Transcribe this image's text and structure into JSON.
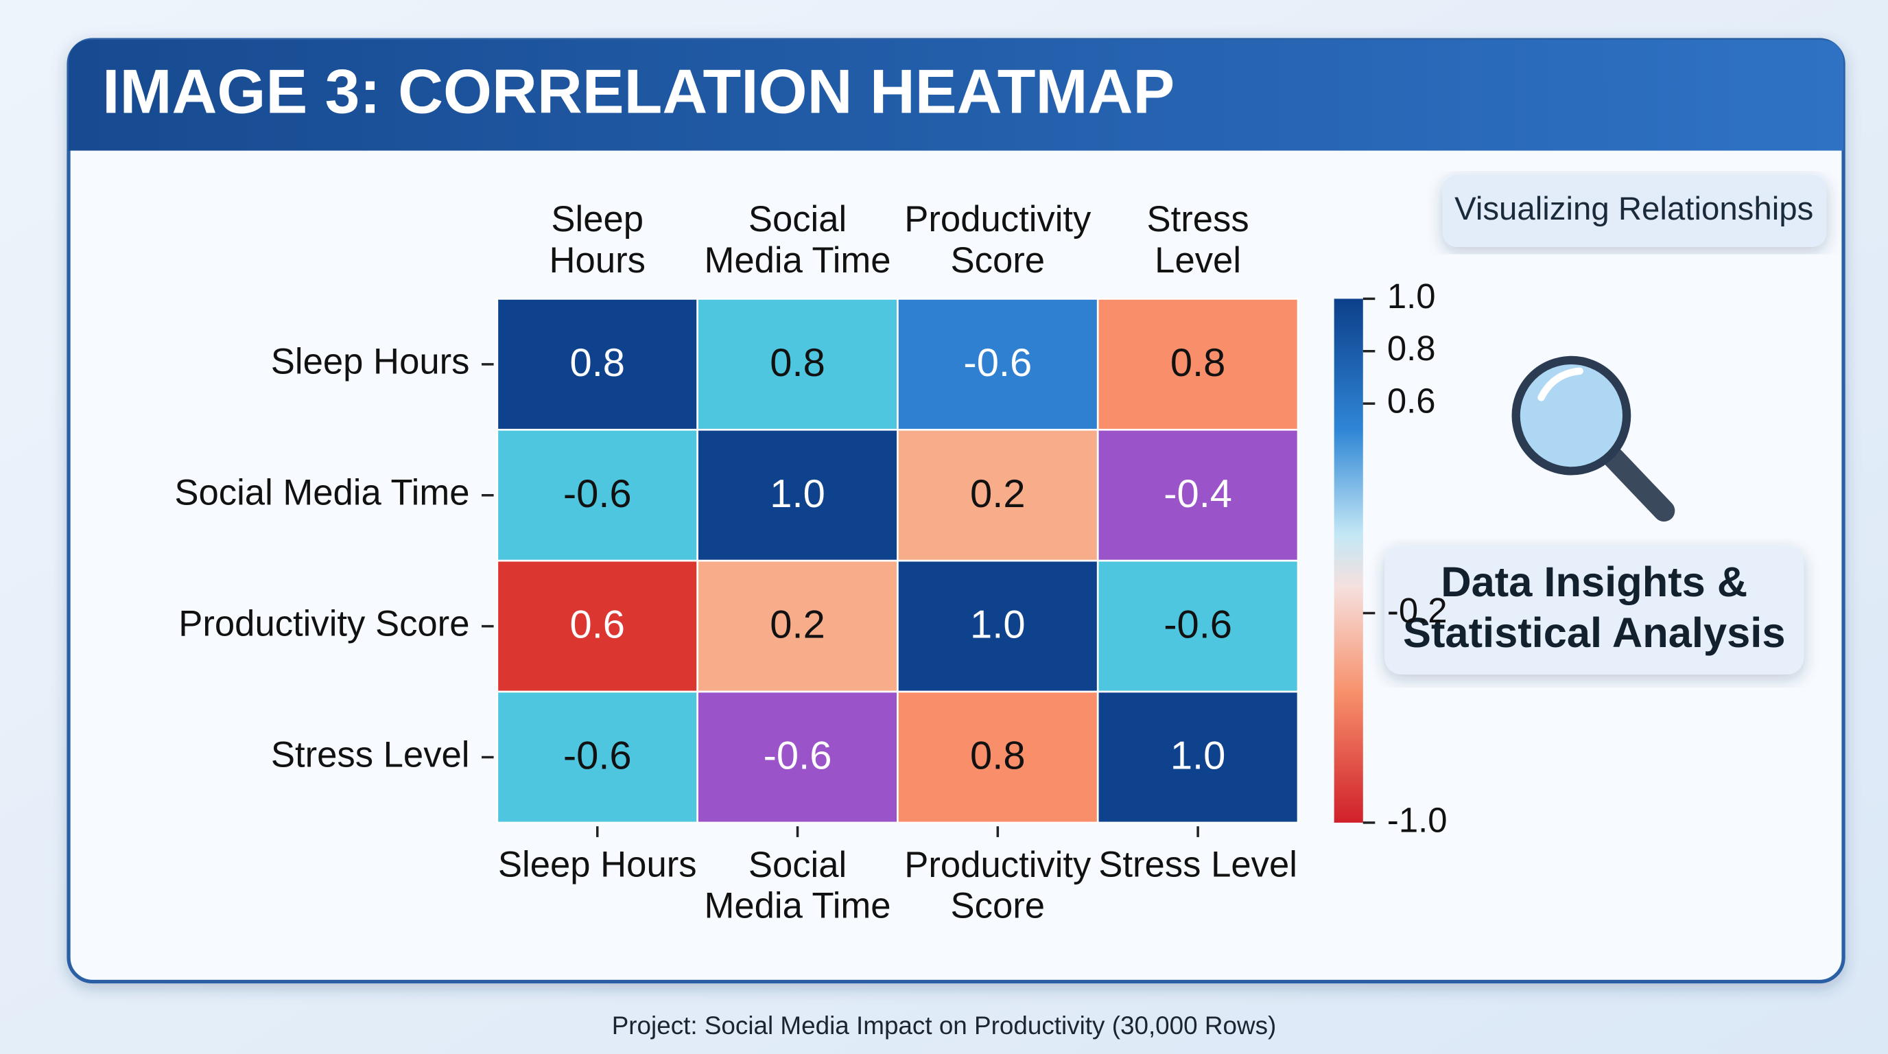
{
  "chart_data": {
    "type": "heatmap",
    "title": "IMAGE 3: CORRELATION HEATMAP",
    "x_categories": [
      "Sleep Hours",
      "Social Media Time",
      "Productivity Score",
      "Stress Level"
    ],
    "y_categories": [
      "Sleep Hours",
      "Social Media Time",
      "Productivity Score",
      "Stress Level"
    ],
    "values": [
      [
        0.8,
        0.8,
        -0.6,
        0.8
      ],
      [
        -0.6,
        1.0,
        0.2,
        -0.4
      ],
      [
        0.6,
        0.2,
        1.0,
        -0.6
      ],
      [
        -0.6,
        -0.6,
        0.8,
        1.0
      ]
    ],
    "value_labels": [
      [
        "0.8",
        "0.8",
        "-0.6",
        "0.8"
      ],
      [
        "-0.6",
        "1.0",
        "0.2",
        "-0.4"
      ],
      [
        "0.6",
        "0.2",
        "1.0",
        "-0.6"
      ],
      [
        "-0.6",
        "-0.6",
        "0.8",
        "1.0"
      ]
    ],
    "colors": [
      [
        "#0f428c",
        "#4ec6df",
        "#3080d2",
        "#f98e6a"
      ],
      [
        "#4ec6df",
        "#0f428c",
        "#f8ad8a",
        "#9b53c9"
      ],
      [
        "#dc3631",
        "#f8ad8a",
        "#0f428c",
        "#4ec6df"
      ],
      [
        "#4ec6df",
        "#9b53c9",
        "#f98e6a",
        "#0f428c"
      ]
    ],
    "clim": [
      -1,
      1
    ],
    "cticks": [
      {
        "value": 1,
        "label": "1.0"
      },
      {
        "value": 0.8,
        "label": "0.8"
      },
      {
        "value": 0.6,
        "label": "0.6"
      },
      {
        "value": -0.2,
        "label": "-0.2"
      },
      {
        "value": -1,
        "label": "-1.0"
      }
    ],
    "badge": "Visualizing Relationships",
    "panel_text": "Data Insights & Statistical Analysis",
    "footer": "Project: Social Media Impact on Productivity (30,000 Rows)"
  }
}
